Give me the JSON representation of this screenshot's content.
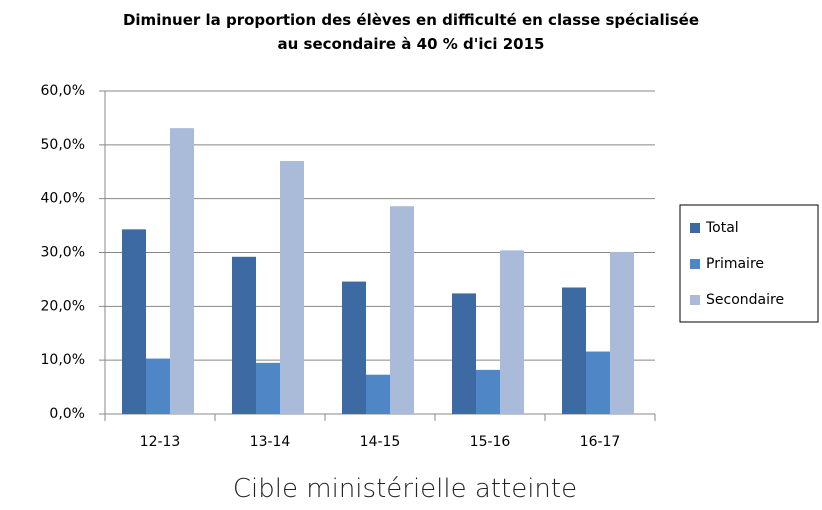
{
  "chart_data": {
    "type": "bar",
    "title": "Diminuer la proportion des élèves en difficulté en classe spécialisée au secondaire à 40 % d'ici 2015",
    "caption": "Cible ministérielle atteinte",
    "categories": [
      "12-13",
      "13-14",
      "14-15",
      "15-16",
      "16-17"
    ],
    "series": [
      {
        "name": "Total",
        "color": "#3d6aa3",
        "values": [
          34.3,
          29.2,
          24.6,
          22.4,
          23.5
        ]
      },
      {
        "name": "Primaire",
        "color": "#4f86c6",
        "values": [
          10.3,
          9.5,
          7.3,
          8.2,
          11.6
        ]
      },
      {
        "name": "Secondaire",
        "color": "#aabbd9",
        "values": [
          53.1,
          47.0,
          38.6,
          30.4,
          30.1
        ]
      }
    ],
    "ylim": [
      0,
      60
    ],
    "yticks": [
      {
        "value": 0,
        "label": "0,0%"
      },
      {
        "value": 10,
        "label": "10,0%"
      },
      {
        "value": 20,
        "label": "20,0%"
      },
      {
        "value": 30,
        "label": "30,0%"
      },
      {
        "value": 40,
        "label": "40,0%"
      },
      {
        "value": 50,
        "label": "50,0%"
      },
      {
        "value": 60,
        "label": "60,0%"
      }
    ],
    "grid": true,
    "legend": "right"
  }
}
